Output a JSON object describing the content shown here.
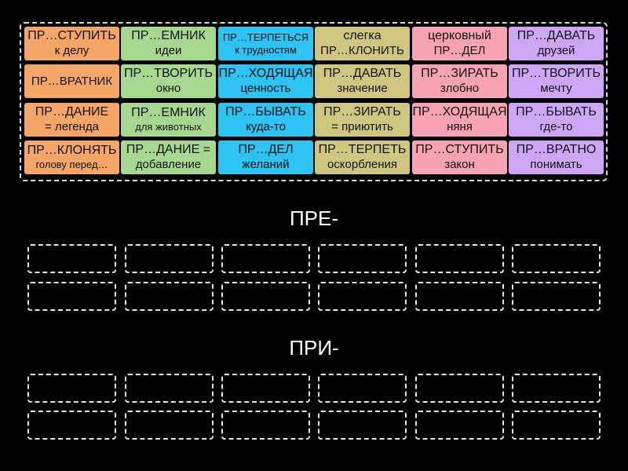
{
  "colors": {
    "orange": "#f5a667",
    "green": "#a7d88f",
    "blue": "#2dc3f3",
    "olive": "#cfc77f",
    "pink": "#f7a3b4",
    "purple": "#cda7f6",
    "background": "#000000"
  },
  "tiles": [
    {
      "l1": "ПР…СТУПИТЬ",
      "l2": "к делу",
      "color": "orange"
    },
    {
      "l1": "ПР…ЕМНИК",
      "l2": "идеи",
      "color": "green"
    },
    {
      "l1": "ПР…ТЕРПЕТЬСЯ",
      "l2": "к трудностям",
      "color": "blue"
    },
    {
      "l1": "слегка",
      "l2": "ПР…КЛОНИТЬ",
      "color": "olive"
    },
    {
      "l1": "церковный",
      "l2": "ПР…ДЕЛ",
      "color": "pink"
    },
    {
      "l1": "ПР…ДАВАТЬ",
      "l2": "друзей",
      "color": "purple"
    },
    {
      "l1": "ПР…ВРАТНИК",
      "l2": "",
      "color": "orange"
    },
    {
      "l1": "ПР…ТВОРИТЬ",
      "l2": "окно",
      "color": "green"
    },
    {
      "l1": "ПР…ХОДЯЩАЯ",
      "l2": "ценность",
      "color": "blue"
    },
    {
      "l1": "ПР…ДАВАТЬ",
      "l2": "значение",
      "color": "olive"
    },
    {
      "l1": "ПР…ЗИРАТЬ",
      "l2": "злобно",
      "color": "pink"
    },
    {
      "l1": "ПР…ТВОРИТЬ",
      "l2": "мечту",
      "color": "purple"
    },
    {
      "l1": "ПР…ДАНИЕ",
      "l2": "= легенда",
      "color": "orange"
    },
    {
      "l1": "ПР…ЕМНИК",
      "l2": "для животных",
      "color": "green"
    },
    {
      "l1": "ПР…БЫВАТЬ",
      "l2": "куда-то",
      "color": "blue"
    },
    {
      "l1": "ПР…ЗИРАТЬ",
      "l2": "= приютить",
      "color": "olive"
    },
    {
      "l1": "ПР…ХОДЯЩАЯ",
      "l2": "няня",
      "color": "pink"
    },
    {
      "l1": "ПР…БЫВАТЬ",
      "l2": "где-то",
      "color": "purple"
    },
    {
      "l1": "ПР…КЛОНЯТЬ",
      "l2": "голову перед…",
      "color": "orange"
    },
    {
      "l1": "ПР…ДАНИЕ =",
      "l2": "добавление",
      "color": "green"
    },
    {
      "l1": "ПР…ДЕЛ",
      "l2": "желаний",
      "color": "blue"
    },
    {
      "l1": "ПР…ТЕРПЕТЬ",
      "l2": "оскорбления",
      "color": "olive"
    },
    {
      "l1": "ПР…СТУПИТЬ",
      "l2": "закон",
      "color": "pink"
    },
    {
      "l1": "ПР…ВРАТНО",
      "l2": "понимать",
      "color": "purple"
    }
  ],
  "groups": [
    {
      "label": "ПРЕ-"
    },
    {
      "label": "ПРИ-"
    }
  ]
}
